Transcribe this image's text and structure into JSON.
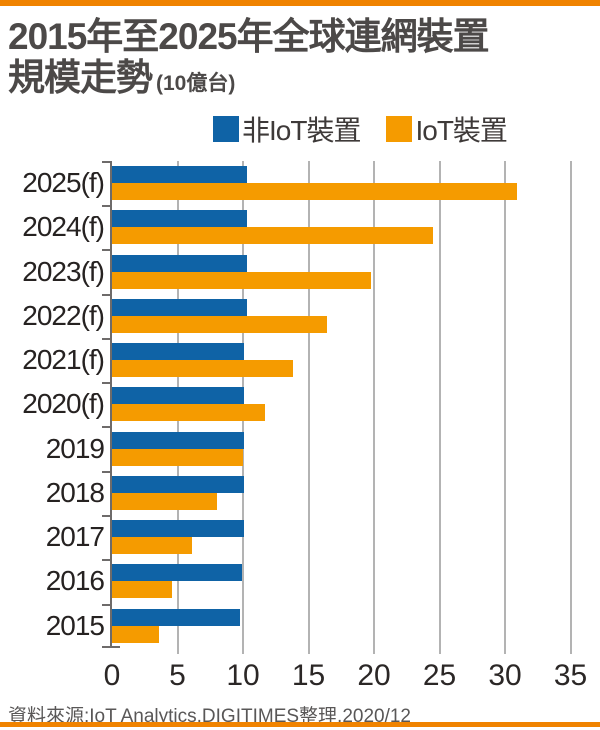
{
  "page": {
    "title_line1": "2015年至2025年全球連網裝置",
    "title_line2": "規模走勢",
    "title_unit": "(10億台)",
    "source": "資料來源:IoT Analytics,DIGITIMES整理,2020/12"
  },
  "colors": {
    "non_iot_blue": "#0f63a6",
    "iot_orange": "#f59b00",
    "rule_orange": "#f08300",
    "gridline_gray": "#b3b3b3",
    "axis_gray": "#6e6b6a",
    "title_gray": "#4c4948",
    "source_gray": "#595757"
  },
  "legend": [
    {
      "label": "非IoT裝置",
      "color": "#0f63a6"
    },
    {
      "label": "IoT裝置",
      "color": "#f59b00"
    }
  ],
  "chart_data": {
    "type": "bar",
    "orientation": "horizontal",
    "title": "2015年至2025年全球連網裝置規模走勢",
    "unit_label": "10億台",
    "categories": [
      "2025(f)",
      "2024(f)",
      "2023(f)",
      "2022(f)",
      "2021(f)",
      "2020(f)",
      "2019",
      "2018",
      "2017",
      "2016",
      "2015"
    ],
    "series": [
      {
        "name": "非IoT裝置",
        "color": "#0f63a6",
        "values": [
          10.3,
          10.3,
          10.3,
          10.3,
          10.1,
          10.1,
          10.1,
          10.1,
          10.1,
          9.9,
          9.8
        ]
      },
      {
        "name": "IoT裝置",
        "color": "#f59b00",
        "values": [
          30.9,
          24.5,
          19.8,
          16.4,
          13.8,
          11.7,
          10.0,
          8.0,
          6.1,
          4.6,
          3.6
        ]
      }
    ],
    "xlim": [
      0,
      35
    ],
    "xticks": [
      0,
      5,
      10,
      15,
      20,
      25,
      30,
      35
    ],
    "grid": true,
    "legend_position": "top",
    "source": "資料來源:IoT Analytics,DIGITIMES整理,2020/12"
  }
}
